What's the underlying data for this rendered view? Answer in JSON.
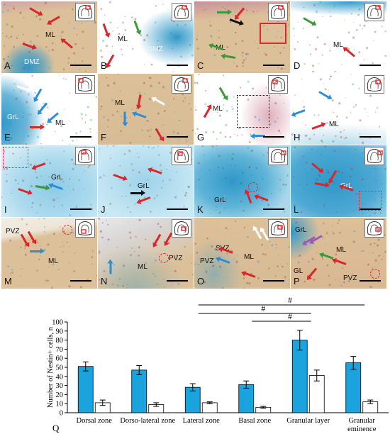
{
  "figure": {
    "panels": [
      {
        "letter": "A",
        "regions": [
          "ML",
          "DMZ"
        ]
      },
      {
        "letter": "B",
        "regions": [
          "ML",
          "DMZ"
        ]
      },
      {
        "letter": "C",
        "regions": [
          "ML"
        ]
      },
      {
        "letter": "D",
        "regions": [
          "ML"
        ]
      },
      {
        "letter": "E",
        "regions": [
          "GrL",
          "ML"
        ]
      },
      {
        "letter": "F",
        "regions": [
          "ML"
        ]
      },
      {
        "letter": "G",
        "regions": [
          "ML"
        ]
      },
      {
        "letter": "H",
        "regions": [
          "ML"
        ]
      },
      {
        "letter": "I",
        "regions": [
          "GrL"
        ]
      },
      {
        "letter": "J",
        "regions": [
          "GrL"
        ]
      },
      {
        "letter": "K",
        "regions": [
          "GrL"
        ]
      },
      {
        "letter": "L",
        "regions": [
          "GrL"
        ]
      },
      {
        "letter": "M",
        "regions": [
          "PVZ",
          "ML"
        ]
      },
      {
        "letter": "N",
        "regions": [
          "ML",
          "PVZ"
        ]
      },
      {
        "letter": "O",
        "regions": [
          "SVZ",
          "PVZ",
          "ML"
        ]
      },
      {
        "letter": "P",
        "regions": [
          "GrL",
          "ML",
          "GL",
          "PVZ"
        ]
      }
    ],
    "colors": {
      "tissue": "#dcc09a",
      "alcian": "#2f98c8",
      "arrow_red": "#d9262b",
      "arrow_green": "#3a9a3a",
      "arrow_blue": "#2c8ed6",
      "arrow_white": "#ffffff",
      "arrow_black": "#111111",
      "arrow_purple": "#9b59b6",
      "bar_filled": "#1aa3dc",
      "bar_open": "#ffffff"
    }
  },
  "chart_data": {
    "type": "bar",
    "panel_label": "Q",
    "ylabel": "Number of Nestin+ cells, n",
    "ylim": [
      0,
      100
    ],
    "yticks": [
      0,
      10,
      20,
      30,
      40,
      50,
      60,
      70,
      80,
      90,
      100
    ],
    "categories": [
      "Dorsal zone",
      "Dorso-lateral zone",
      "Lateral zone",
      "Basal zone",
      "Granular layer",
      "Granular eminence"
    ],
    "series": [
      {
        "values": [
          51,
          47,
          28,
          31,
          80,
          55
        ],
        "errors": [
          5,
          5,
          4,
          4,
          11,
          7
        ],
        "color": "#1aa3dc"
      },
      {
        "values": [
          11,
          9,
          11,
          6,
          41,
          12
        ],
        "errors": [
          3,
          2,
          1,
          1,
          6,
          2
        ],
        "color": "#ffffff"
      }
    ],
    "significance": [
      {
        "from": 2,
        "to": 5,
        "label": "#"
      },
      {
        "from": 2,
        "to": 4,
        "label": "#"
      },
      {
        "from": 3,
        "to": 4,
        "label": "#"
      }
    ]
  }
}
